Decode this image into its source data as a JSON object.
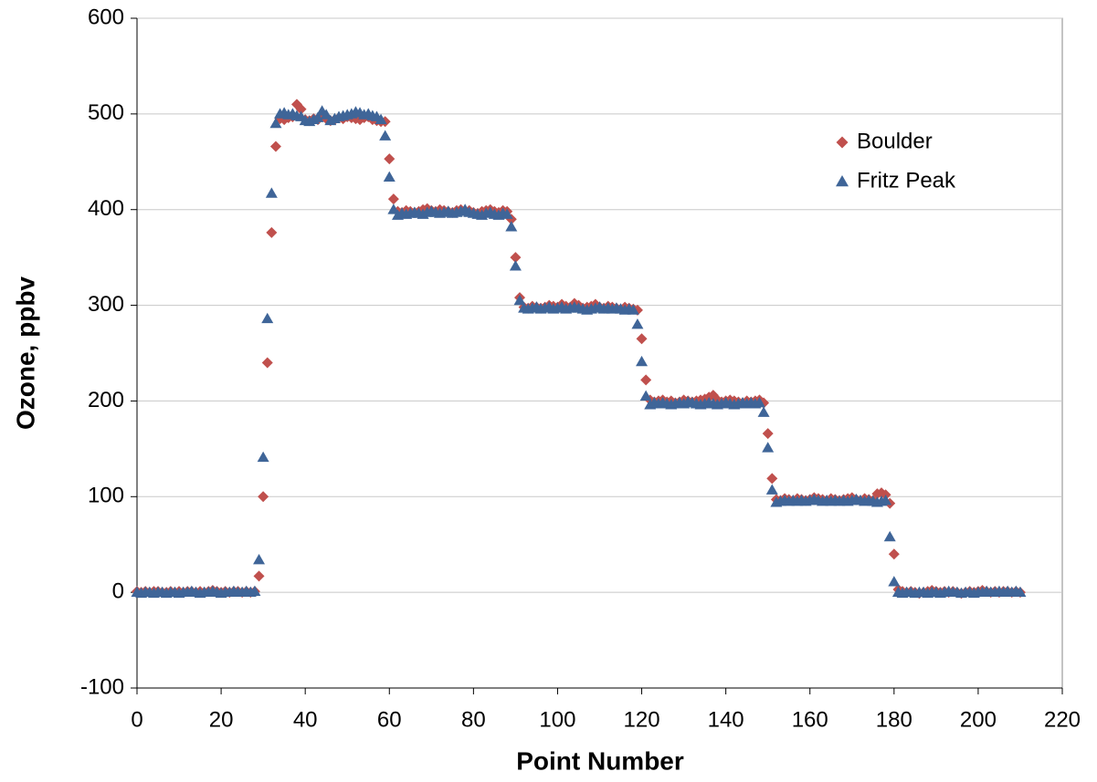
{
  "chart_data": {
    "type": "scatter",
    "x_label": "Point Number",
    "y_label": "Ozone, ppbv",
    "x": [
      0,
      1,
      2,
      3,
      4,
      5,
      6,
      7,
      8,
      9,
      10,
      11,
      12,
      13,
      14,
      15,
      16,
      17,
      18,
      19,
      20,
      21,
      22,
      23,
      24,
      25,
      26,
      27,
      28,
      29,
      30,
      31,
      32,
      33,
      34,
      35,
      36,
      37,
      38,
      39,
      40,
      41,
      42,
      43,
      44,
      45,
      46,
      47,
      48,
      49,
      50,
      51,
      52,
      53,
      54,
      55,
      56,
      57,
      58,
      59,
      60,
      61,
      62,
      63,
      64,
      65,
      66,
      67,
      68,
      69,
      70,
      71,
      72,
      73,
      74,
      75,
      76,
      77,
      78,
      79,
      80,
      81,
      82,
      83,
      84,
      85,
      86,
      87,
      88,
      89,
      90,
      91,
      92,
      93,
      94,
      95,
      96,
      97,
      98,
      99,
      100,
      101,
      102,
      103,
      104,
      105,
      106,
      107,
      108,
      109,
      110,
      111,
      112,
      113,
      114,
      115,
      116,
      117,
      118,
      119,
      120,
      121,
      122,
      123,
      124,
      125,
      126,
      127,
      128,
      129,
      130,
      131,
      132,
      133,
      134,
      135,
      136,
      137,
      138,
      139,
      140,
      141,
      142,
      143,
      144,
      145,
      146,
      147,
      148,
      149,
      150,
      151,
      152,
      153,
      154,
      155,
      156,
      157,
      158,
      159,
      160,
      161,
      162,
      163,
      164,
      165,
      166,
      167,
      168,
      169,
      170,
      171,
      172,
      173,
      174,
      175,
      176,
      177,
      178,
      179,
      180,
      181,
      182,
      183,
      184,
      185,
      186,
      187,
      188,
      189,
      190,
      191,
      192,
      193,
      194,
      195,
      196,
      197,
      198,
      199,
      200,
      201,
      202,
      203,
      204,
      205,
      206,
      207,
      208,
      209,
      210
    ],
    "series": [
      {
        "name": "Boulder",
        "color": "#c0504d",
        "marker": "diamond",
        "values": [
          1,
          0,
          1,
          0,
          1,
          1,
          0,
          0,
          1,
          0,
          1,
          0,
          1,
          1,
          0,
          1,
          0,
          1,
          2,
          1,
          0,
          1,
          0,
          1,
          1,
          0,
          1,
          0,
          1,
          17,
          100,
          240,
          376,
          466,
          495,
          494,
          496,
          497,
          510,
          505,
          494,
          493,
          495,
          494,
          498,
          495,
          493,
          494,
          496,
          495,
          497,
          496,
          495,
          494,
          496,
          497,
          494,
          493,
          492,
          492,
          453,
          411,
          398,
          397,
          399,
          398,
          397,
          398,
          400,
          401,
          399,
          398,
          400,
          399,
          398,
          397,
          399,
          400,
          398,
          399,
          397,
          396,
          398,
          399,
          400,
          398,
          397,
          399,
          398,
          390,
          350,
          308,
          298,
          297,
          299,
          298,
          297,
          298,
          300,
          299,
          298,
          301,
          299,
          298,
          302,
          300,
          297,
          298,
          299,
          301,
          298,
          297,
          299,
          298,
          297,
          296,
          298,
          297,
          296,
          295,
          265,
          222,
          201,
          199,
          200,
          201,
          199,
          200,
          198,
          199,
          201,
          200,
          199,
          200,
          201,
          202,
          204,
          206,
          201,
          199,
          200,
          201,
          200,
          199,
          198,
          200,
          199,
          200,
          201,
          198,
          166,
          119,
          97,
          96,
          98,
          97,
          96,
          98,
          97,
          96,
          97,
          99,
          98,
          97,
          96,
          98,
          97,
          96,
          97,
          98,
          99,
          97,
          96,
          98,
          97,
          96,
          103,
          104,
          102,
          93,
          40,
          3,
          1,
          0,
          1,
          0,
          -1,
          0,
          1,
          2,
          1,
          0,
          1,
          0,
          1,
          0,
          -1,
          0,
          1,
          0,
          1,
          2,
          1,
          0,
          1,
          0,
          1,
          1,
          0,
          1,
          0
        ]
      },
      {
        "name": "Fritz Peak",
        "color": "#3f6598",
        "marker": "triangle",
        "values": [
          0,
          -1,
          0,
          0,
          -1,
          0,
          0,
          -1,
          0,
          0,
          -1,
          0,
          0,
          1,
          0,
          -1,
          0,
          0,
          1,
          0,
          -1,
          0,
          0,
          1,
          0,
          0,
          1,
          0,
          1,
          34,
          141,
          286,
          417,
          490,
          500,
          501,
          499,
          500,
          498,
          497,
          493,
          492,
          494,
          496,
          503,
          499,
          493,
          495,
          497,
          498,
          499,
          500,
          502,
          501,
          499,
          500,
          498,
          497,
          494,
          477,
          434,
          400,
          394,
          396,
          395,
          396,
          397,
          396,
          395,
          397,
          398,
          397,
          396,
          397,
          398,
          396,
          397,
          398,
          400,
          397,
          396,
          395,
          394,
          396,
          397,
          395,
          394,
          396,
          395,
          382,
          341,
          305,
          297,
          296,
          297,
          298,
          296,
          297,
          298,
          296,
          297,
          298,
          296,
          297,
          298,
          297,
          296,
          295,
          296,
          297,
          298,
          296,
          297,
          296,
          297,
          296,
          295,
          296,
          295,
          280,
          241,
          205,
          196,
          198,
          197,
          198,
          197,
          196,
          197,
          198,
          197,
          199,
          198,
          197,
          196,
          197,
          198,
          197,
          196,
          197,
          198,
          197,
          196,
          197,
          198,
          197,
          198,
          197,
          198,
          188,
          151,
          107,
          94,
          95,
          96,
          95,
          96,
          95,
          96,
          95,
          96,
          97,
          96,
          95,
          96,
          95,
          96,
          95,
          96,
          95,
          96,
          97,
          96,
          95,
          96,
          95,
          94,
          95,
          96,
          58,
          11,
          0,
          -1,
          0,
          0,
          -1,
          0,
          0,
          -1,
          0,
          0,
          -1,
          0,
          1,
          0,
          0,
          -1,
          0,
          0,
          -1,
          0,
          0,
          1,
          0,
          0,
          1,
          0,
          1,
          0,
          1,
          0
        ]
      }
    ],
    "xlim": [
      0,
      220
    ],
    "xticks": [
      0,
      20,
      40,
      60,
      80,
      100,
      120,
      140,
      160,
      180,
      200,
      220
    ],
    "ylim": [
      -100,
      600
    ],
    "yticks": [
      -100,
      0,
      100,
      200,
      300,
      400,
      500,
      600
    ],
    "grid": true,
    "legend": "upper right"
  }
}
